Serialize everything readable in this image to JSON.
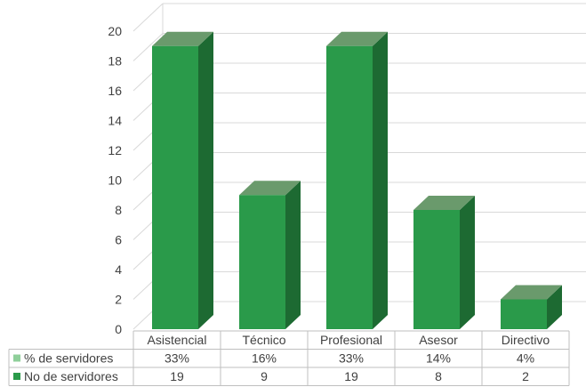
{
  "chart_data": {
    "type": "bar",
    "categories": [
      "Asistencial",
      "Técnico",
      "Profesional",
      "Asesor",
      "Directivo"
    ],
    "series": [
      {
        "name": "% de servidores",
        "values": [
          "33%",
          "16%",
          "33%",
          "14%",
          "4%"
        ],
        "color": "#8fcf9a"
      },
      {
        "name": "No de servidores",
        "values": [
          19,
          9,
          19,
          8,
          2
        ],
        "color": "#2a9a4a"
      }
    ],
    "yticks": [
      0,
      2,
      4,
      6,
      8,
      10,
      12,
      14,
      16,
      18,
      20
    ],
    "ylim": [
      0,
      20
    ],
    "grid": true,
    "legend": "data-table"
  }
}
